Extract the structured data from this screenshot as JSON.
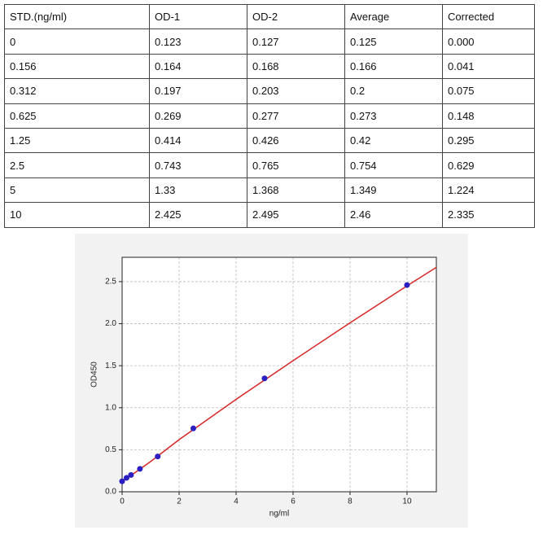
{
  "table": {
    "header": [
      "STD.(ng/ml)",
      "OD-1",
      "OD-2",
      "Average",
      "Corrected"
    ],
    "rows": [
      [
        "0",
        "0.123",
        "0.127",
        "0.125",
        "0.000"
      ],
      [
        "0.156",
        "0.164",
        "0.168",
        "0.166",
        "0.041"
      ],
      [
        "0.312",
        "0.197",
        "0.203",
        "0.2",
        "0.075"
      ],
      [
        "0.625",
        "0.269",
        "0.277",
        "0.273",
        "0.148"
      ],
      [
        "1.25",
        "0.414",
        "0.426",
        "0.42",
        "0.295"
      ],
      [
        "2.5",
        "0.743",
        "0.765",
        "0.754",
        "0.629"
      ],
      [
        "5",
        "1.33",
        "1.368",
        "1.349",
        "1.224"
      ],
      [
        "10",
        "2.425",
        "2.495",
        "2.46",
        "2.335"
      ]
    ]
  },
  "chart_data": {
    "type": "scatter",
    "x_label": "ng/ml",
    "y_label": "OD450",
    "xlim": [
      0,
      11.03
    ],
    "ylim": [
      0,
      2.79
    ],
    "xticks": [
      0,
      2,
      4,
      6,
      8,
      10
    ],
    "yticks": [
      {
        "value": 0,
        "label": "0.0"
      },
      {
        "value": 0.5,
        "label": "0.5"
      },
      {
        "value": 1,
        "label": "1.0"
      },
      {
        "value": 1.5,
        "label": "1.5"
      },
      {
        "value": 2,
        "label": "2.0"
      },
      {
        "value": 2.5,
        "label": "2.5"
      }
    ],
    "grid": true,
    "points": {
      "color": "#2a1fc0",
      "x": [
        0,
        0.156,
        0.312,
        0.625,
        1.25,
        2.5,
        5,
        10
      ],
      "values": [
        0.125,
        0.166,
        0.2,
        0.273,
        0.42,
        0.754,
        1.349,
        2.46
      ]
    },
    "fit": {
      "color": "#d62728",
      "x": [
        0,
        1,
        2,
        4,
        6,
        8,
        10,
        11.03
      ],
      "values": [
        0.12,
        0.36,
        0.62,
        1.1,
        1.56,
        2.01,
        2.45,
        2.67
      ]
    }
  }
}
